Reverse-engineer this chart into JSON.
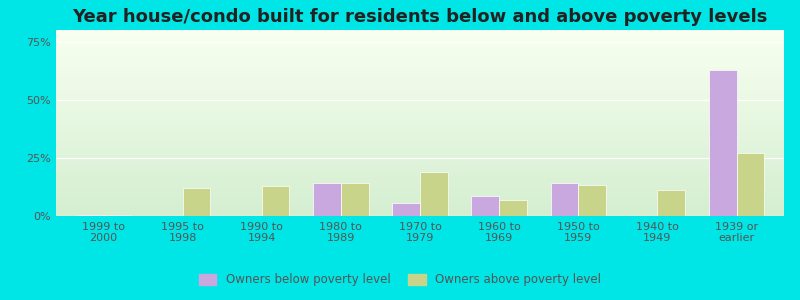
{
  "title": "Year house/condo built for residents below and above poverty levels",
  "categories": [
    "1999 to\n2000",
    "1995 to\n1998",
    "1990 to\n1994",
    "1980 to\n1989",
    "1970 to\n1979",
    "1960 to\n1969",
    "1950 to\n1959",
    "1940 to\n1949",
    "1939 or\nearlier"
  ],
  "below_poverty": [
    0.5,
    0.0,
    0.0,
    14.0,
    5.5,
    8.5,
    14.0,
    0.0,
    63.0
  ],
  "above_poverty": [
    0.5,
    12.0,
    13.0,
    14.0,
    19.0,
    7.0,
    13.5,
    11.0,
    27.0
  ],
  "below_color": "#c9a8e0",
  "above_color": "#c8d48a",
  "bg_color": "#00e5e5",
  "yticks": [
    0,
    25,
    50,
    75
  ],
  "ylim": [
    0,
    80
  ],
  "legend_below": "Owners below poverty level",
  "legend_above": "Owners above poverty level",
  "title_fontsize": 13,
  "tick_fontsize": 8,
  "bar_width": 0.35
}
